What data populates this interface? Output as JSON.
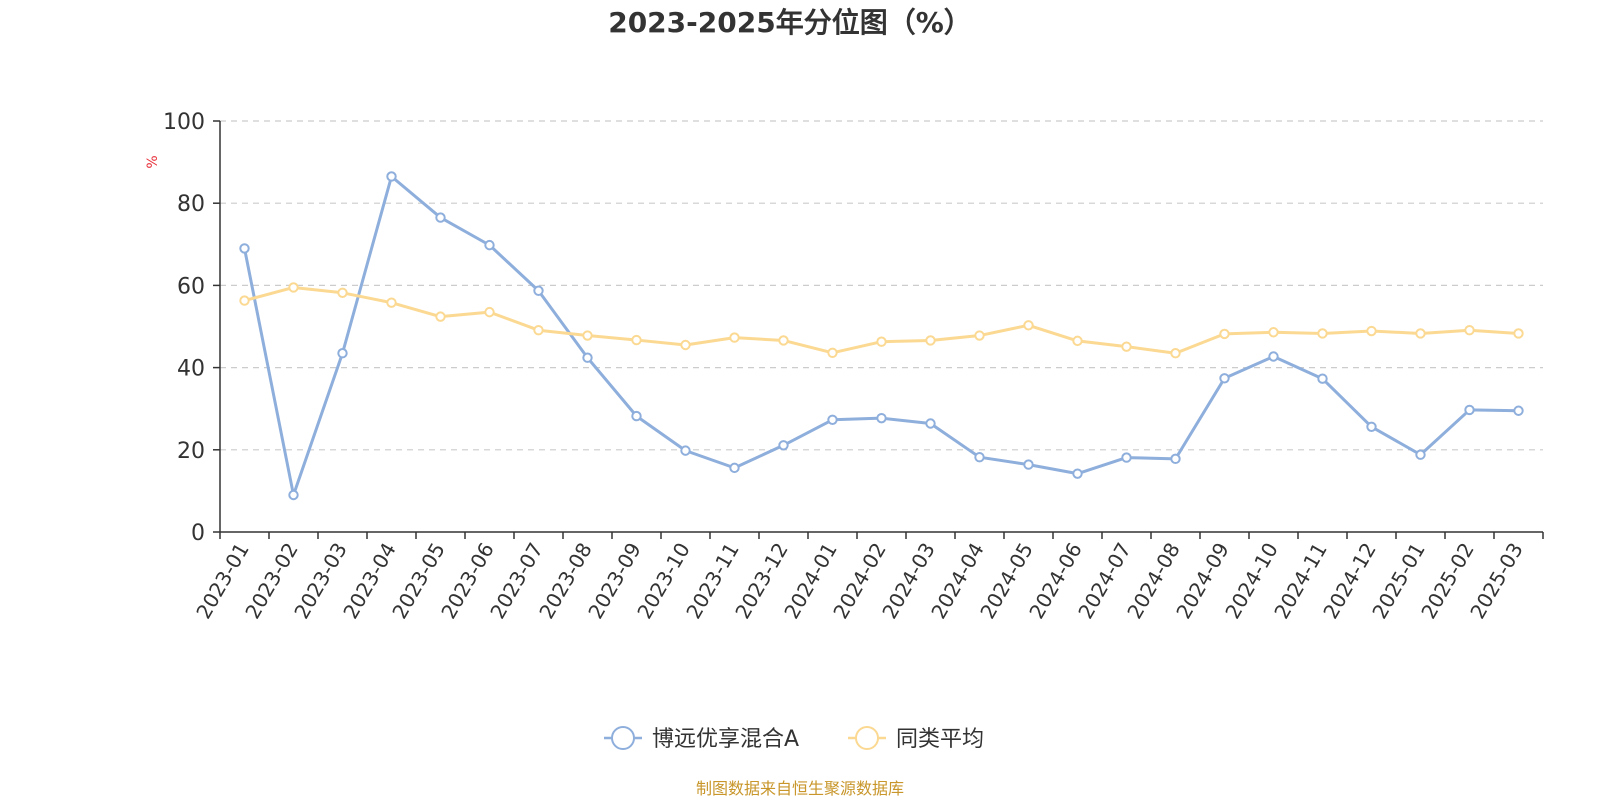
{
  "chart_data": {
    "type": "line",
    "title": "2023-2025年分位图（%）",
    "ylabel": "%",
    "xlabel": "",
    "ylim": [
      0,
      100
    ],
    "yticks": [
      0,
      20,
      40,
      60,
      80,
      100
    ],
    "grid": true,
    "legend_position": "bottom",
    "categories": [
      "2023-01",
      "2023-02",
      "2023-03",
      "2023-04",
      "2023-05",
      "2023-06",
      "2023-07",
      "2023-08",
      "2023-09",
      "2023-10",
      "2023-11",
      "2023-12",
      "2024-01",
      "2024-02",
      "2024-03",
      "2024-04",
      "2024-05",
      "2024-06",
      "2024-07",
      "2024-08",
      "2024-09",
      "2024-10",
      "2024-11",
      "2024-12",
      "2025-01",
      "2025-02",
      "2025-03"
    ],
    "series": [
      {
        "name": "博远优享混合A",
        "color": "#8eaedc",
        "values": [
          69.0,
          9.0,
          43.5,
          86.5,
          76.5,
          69.8,
          58.7,
          42.4,
          28.2,
          19.8,
          15.6,
          21.1,
          27.3,
          27.7,
          26.4,
          18.2,
          16.4,
          14.2,
          18.1,
          17.8,
          37.4,
          42.7,
          37.3,
          25.6,
          18.8,
          29.7,
          29.5
        ]
      },
      {
        "name": "同类平均",
        "color": "#fbd992",
        "values": [
          56.3,
          59.5,
          58.2,
          55.8,
          52.4,
          53.5,
          49.1,
          47.8,
          46.7,
          45.5,
          47.3,
          46.6,
          43.6,
          46.3,
          46.6,
          47.8,
          50.3,
          46.5,
          45.1,
          43.5,
          48.2,
          48.6,
          48.3,
          48.9,
          48.3,
          49.1,
          48.3
        ]
      }
    ]
  },
  "unit_color": "#e8323c",
  "source_text": "制图数据来自恒生聚源数据库",
  "source_color": "#c8962a"
}
